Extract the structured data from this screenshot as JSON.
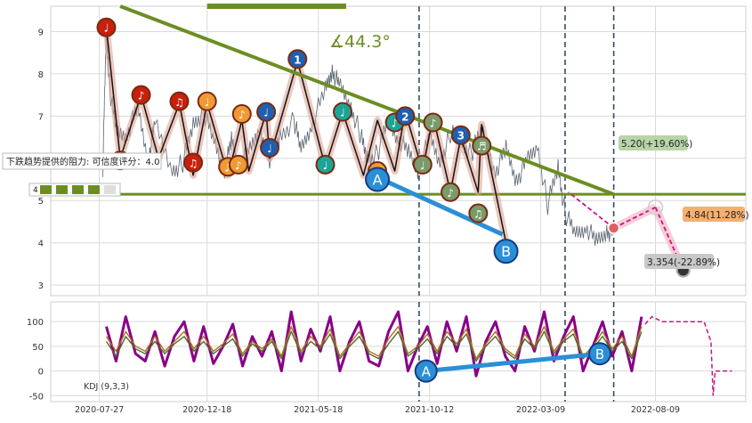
{
  "colors": {
    "background": "#ffffff",
    "grid": "#d9d9d9",
    "trendline": "#6b8e23",
    "price": "#5a6470",
    "zigzag": "#111111",
    "ab_line": "#2a8fd6",
    "pattern_line": "#dd9a8a",
    "marker_red": "#c8200e",
    "marker_orange": "#f09a35",
    "marker_teal": "#1aa596",
    "marker_blue": "#1f5fb0",
    "marker_olive": "#7a9a6a",
    "kdj_k": "#880088",
    "kdj_d": "#b07020",
    "kdj_j": "#556b2f",
    "projection": "#c71585",
    "vline": "#3a4a60"
  },
  "chart_data": [
    {
      "type": "line",
      "panel": "price",
      "x_tick_labels": [
        "2020-07-27",
        "2020-12-18",
        "2021-05-18",
        "2021-10-12",
        "2022-03-09",
        "2022-08-09"
      ],
      "y_ticks": [
        3,
        4,
        5,
        6,
        7,
        8,
        9
      ],
      "ylim": [
        2.75,
        9.6
      ],
      "xlim": [
        0,
        100
      ],
      "grid": true,
      "annotations": {
        "angle_label": "∡44.3°",
        "resistance_label": "下跌趋势提供的阻力: 可信度评分：4.0",
        "resistance_score_label": "4",
        "target_up_label": "5.20(+19.60%)",
        "target_mid_label": "4.84(11.28%)",
        "target_down_label": "3.354(-22.89%)",
        "point_a_label": "A",
        "point_b_label": "B",
        "point_1_label": "1",
        "point_2_label": "2",
        "point_3_label": "3"
      },
      "vertical_markers_x": [
        53,
        74,
        81
      ],
      "support_level": 5.15,
      "trendline": [
        {
          "x": 10,
          "y": 9.6
        },
        {
          "x": 81,
          "y": 5.15
        }
      ],
      "price_series": [
        [
          7.5,
          5.8
        ],
        [
          8.0,
          9.1
        ],
        [
          8.5,
          7.6
        ],
        [
          9.5,
          6.6
        ],
        [
          11.0,
          6.6
        ],
        [
          12.5,
          7.2
        ],
        [
          14.0,
          6.0
        ],
        [
          15.0,
          6.8
        ],
        [
          17.5,
          5.7
        ],
        [
          19.0,
          5.9
        ],
        [
          20.5,
          6.8
        ],
        [
          22.0,
          7.1
        ],
        [
          23.5,
          6.4
        ],
        [
          25.0,
          5.7
        ],
        [
          26.0,
          6.4
        ],
        [
          27.0,
          5.9
        ],
        [
          28.5,
          6.1
        ],
        [
          30.0,
          6.7
        ],
        [
          31.5,
          6.0
        ],
        [
          33.0,
          6.5
        ],
        [
          35.0,
          6.9
        ],
        [
          36.0,
          6.2
        ],
        [
          37.5,
          6.8
        ],
        [
          39.5,
          7.6
        ],
        [
          40.5,
          8.1
        ],
        [
          41.5,
          7.7
        ],
        [
          43.0,
          7.3
        ],
        [
          44.5,
          6.6
        ],
        [
          45.5,
          6.0
        ],
        [
          47.0,
          6.1
        ],
        [
          48.5,
          6.9
        ],
        [
          50.0,
          6.5
        ],
        [
          51.5,
          6.1
        ],
        [
          53.0,
          5.7
        ],
        [
          54.5,
          6.5
        ],
        [
          56.0,
          5.9
        ],
        [
          57.5,
          6.6
        ],
        [
          59.0,
          6.4
        ],
        [
          60.5,
          6.1
        ],
        [
          62.0,
          6.7
        ],
        [
          64.0,
          5.7
        ],
        [
          65.5,
          6.2
        ],
        [
          67.0,
          5.5
        ],
        [
          68.5,
          5.9
        ],
        [
          70.0,
          6.3
        ],
        [
          71.5,
          4.9
        ],
        [
          73.0,
          5.8
        ],
        [
          74.0,
          4.7
        ],
        [
          75.5,
          4.2
        ],
        [
          77.0,
          4.4
        ],
        [
          78.5,
          4.0
        ],
        [
          80.0,
          4.3
        ],
        [
          81.0,
          4.2
        ]
      ],
      "zigzag": [
        [
          8.0,
          9.1
        ],
        [
          10.0,
          6.0
        ],
        [
          13.0,
          7.5
        ],
        [
          15.5,
          6.0
        ],
        [
          18.5,
          7.3
        ],
        [
          20.5,
          5.6
        ],
        [
          22.5,
          7.3
        ],
        [
          25.5,
          5.6
        ],
        [
          27.5,
          6.9
        ],
        [
          28.5,
          5.7
        ],
        [
          31.0,
          7.1
        ],
        [
          31.5,
          6.0
        ],
        [
          35.5,
          8.3
        ],
        [
          39.5,
          5.8
        ],
        [
          42.0,
          7.1
        ],
        [
          45.0,
          5.6
        ],
        [
          47.0,
          6.9
        ],
        [
          49.5,
          5.7
        ],
        [
          51.0,
          7.1
        ],
        [
          53.5,
          5.7
        ],
        [
          55.0,
          7.0
        ],
        [
          57.5,
          5.2
        ],
        [
          59.0,
          6.5
        ],
        [
          61.5,
          5.2
        ],
        [
          62.0,
          6.8
        ],
        [
          65.5,
          4.0
        ]
      ],
      "ab_line": [
        [
          47.0,
          5.55
        ],
        [
          65.0,
          4.2
        ]
      ],
      "projection_up": [
        [
          81.0,
          4.35
        ],
        [
          87.0,
          4.84
        ]
      ],
      "projection_down": [
        [
          87.0,
          4.84
        ],
        [
          91.0,
          3.35
        ]
      ],
      "projection_to_target": [
        [
          81.0,
          4.35
        ],
        [
          74.5,
          5.2
        ]
      ],
      "markers": [
        {
          "x": 8.0,
          "y": 9.1,
          "kind": "red",
          "glyph": "♩"
        },
        {
          "x": 10.0,
          "y": 5.95,
          "kind": "red",
          "glyph": "♩"
        },
        {
          "x": 13.0,
          "y": 7.5,
          "kind": "red",
          "glyph": "♪"
        },
        {
          "x": 18.5,
          "y": 7.35,
          "kind": "red",
          "glyph": "♫"
        },
        {
          "x": 20.5,
          "y": 5.9,
          "kind": "red",
          "glyph": "♫"
        },
        {
          "x": 22.5,
          "y": 7.35,
          "kind": "orange",
          "glyph": "♩"
        },
        {
          "x": 25.5,
          "y": 5.8,
          "kind": "orange",
          "glyph": "♪"
        },
        {
          "x": 27.0,
          "y": 5.85,
          "kind": "orange",
          "glyph": "♪"
        },
        {
          "x": 27.5,
          "y": 7.05,
          "kind": "orange",
          "glyph": "♪"
        },
        {
          "x": 31.0,
          "y": 7.1,
          "kind": "blue",
          "glyph": "♩"
        },
        {
          "x": 31.5,
          "y": 6.25,
          "kind": "blue",
          "glyph": "♩"
        },
        {
          "x": 35.5,
          "y": 8.35,
          "kind": "blue",
          "glyph": "1"
        },
        {
          "x": 39.5,
          "y": 5.85,
          "kind": "teal",
          "glyph": "♩"
        },
        {
          "x": 42.0,
          "y": 7.1,
          "kind": "teal",
          "glyph": "♩"
        },
        {
          "x": 47.0,
          "y": 5.7,
          "kind": "orange",
          "glyph": "♫"
        },
        {
          "x": 49.5,
          "y": 6.85,
          "kind": "teal",
          "glyph": "♪"
        },
        {
          "x": 51.0,
          "y": 7.0,
          "kind": "blue",
          "glyph": "2"
        },
        {
          "x": 53.5,
          "y": 5.85,
          "kind": "olive",
          "glyph": "♩"
        },
        {
          "x": 55.0,
          "y": 6.85,
          "kind": "olive",
          "glyph": "♪"
        },
        {
          "x": 57.5,
          "y": 5.2,
          "kind": "olive",
          "glyph": "♪"
        },
        {
          "x": 59.0,
          "y": 6.55,
          "kind": "blue",
          "glyph": "3"
        },
        {
          "x": 61.5,
          "y": 4.7,
          "kind": "olive",
          "glyph": "♫"
        },
        {
          "x": 62.0,
          "y": 6.3,
          "kind": "olive",
          "glyph": "♬"
        }
      ],
      "point_a": {
        "x": 47.0,
        "y": 5.5
      },
      "point_b": {
        "x": 65.5,
        "y": 3.8
      }
    },
    {
      "type": "line",
      "panel": "indicator",
      "title": "KDJ (9,3,3)",
      "y_ticks": [
        -50,
        0,
        50,
        100
      ],
      "ylim": [
        -62,
        140
      ],
      "grid": true,
      "series": [
        {
          "name": "K",
          "values": [
            90,
            20,
            110,
            35,
            20,
            80,
            10,
            70,
            100,
            20,
            90,
            15,
            50,
            95,
            10,
            70,
            30,
            80,
            0,
            120,
            20,
            85,
            40,
            110,
            0,
            60,
            100,
            20,
            10,
            80,
            120,
            0,
            50,
            90,
            15,
            100,
            40,
            110,
            -10,
            60,
            100,
            30,
            0,
            90,
            40,
            120,
            20,
            70,
            110,
            0,
            50,
            100,
            30,
            80,
            0,
            110
          ]
        },
        {
          "name": "D",
          "values": [
            70,
            40,
            80,
            50,
            40,
            70,
            40,
            60,
            80,
            45,
            70,
            40,
            55,
            75,
            35,
            60,
            45,
            65,
            30,
            90,
            40,
            70,
            50,
            85,
            30,
            55,
            80,
            40,
            30,
            65,
            90,
            35,
            50,
            75,
            40,
            80,
            55,
            85,
            25,
            55,
            80,
            45,
            30,
            75,
            50,
            90,
            40,
            65,
            85,
            30,
            50,
            80,
            45,
            70,
            30,
            90
          ]
        },
        {
          "name": "J",
          "values": [
            60,
            30,
            70,
            45,
            35,
            60,
            35,
            55,
            70,
            40,
            60,
            35,
            50,
            65,
            30,
            55,
            40,
            60,
            25,
            80,
            35,
            60,
            45,
            75,
            25,
            50,
            70,
            35,
            25,
            55,
            80,
            30,
            45,
            65,
            35,
            70,
            50,
            75,
            20,
            50,
            70,
            40,
            25,
            65,
            45,
            80,
            35,
            60,
            75,
            25,
            45,
            70,
            40,
            60,
            25,
            80
          ]
        }
      ],
      "projection": [
        [
          85.5,
          95
        ],
        [
          86.5,
          110
        ],
        [
          88.0,
          100
        ],
        [
          90.0,
          100
        ],
        [
          91.0,
          100
        ],
        [
          92.0,
          100
        ],
        [
          93.0,
          100
        ],
        [
          94.0,
          100
        ],
        [
          95.0,
          60
        ],
        [
          95.3,
          -50
        ],
        [
          95.6,
          0
        ],
        [
          98.0,
          0
        ]
      ],
      "ab_line": [
        [
          54.0,
          0
        ],
        [
          79.0,
          35
        ]
      ],
      "point_a": {
        "x": 54.0,
        "y": 0
      },
      "point_b": {
        "x": 79.0,
        "y": 35
      }
    }
  ]
}
